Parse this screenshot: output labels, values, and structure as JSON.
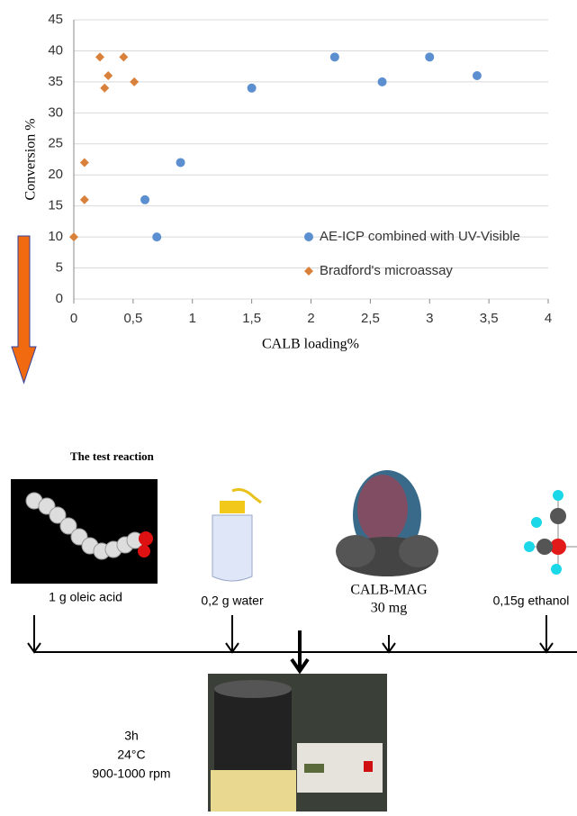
{
  "chart_data": {
    "type": "scatter",
    "xlabel": "CALB loading%",
    "ylabel": "Conversion %",
    "xlim": [
      0,
      4
    ],
    "ylim": [
      0,
      45
    ],
    "xticks": [
      0,
      {
        "value": 0.5,
        "label": "0,5"
      },
      1,
      {
        "value": 1.5,
        "label": "1,5"
      },
      2,
      {
        "value": 2.5,
        "label": "2,5"
      },
      3,
      {
        "value": 3.5,
        "label": "3,5"
      },
      4
    ],
    "yticks": [
      0,
      5,
      10,
      15,
      20,
      25,
      30,
      35,
      40,
      45
    ],
    "grid": true,
    "legend": "lower right",
    "series": [
      {
        "name": "AE-ICP combined with UV-Visible",
        "color": "#5b8fd0",
        "marker": "circle",
        "x": [
          0.6,
          0.7,
          0.9,
          1.5,
          2.2,
          2.6,
          3.0,
          3.4
        ],
        "values": [
          16,
          10,
          22,
          34,
          39,
          35,
          39,
          36
        ]
      },
      {
        "name": "Bradford's microassay",
        "color": "#d9813b",
        "marker": "diamond",
        "x": [
          0,
          0.09,
          0.09,
          0.22,
          0.26,
          0.29,
          0.42,
          0.51
        ],
        "values": [
          10,
          16,
          22,
          39,
          34,
          36,
          39,
          35
        ]
      }
    ]
  },
  "diagram": {
    "title": "The test reaction",
    "reagents": [
      {
        "lines": [
          "1 g oleic acid"
        ]
      },
      {
        "lines": [
          "0,2 g water"
        ]
      },
      {
        "lines": [
          "CALB-MAG",
          "30 mg"
        ]
      },
      {
        "lines": [
          "0,15g  ethanol"
        ]
      }
    ],
    "conditions": [
      "3h",
      "24°C",
      "900-1000 rpm"
    ]
  }
}
